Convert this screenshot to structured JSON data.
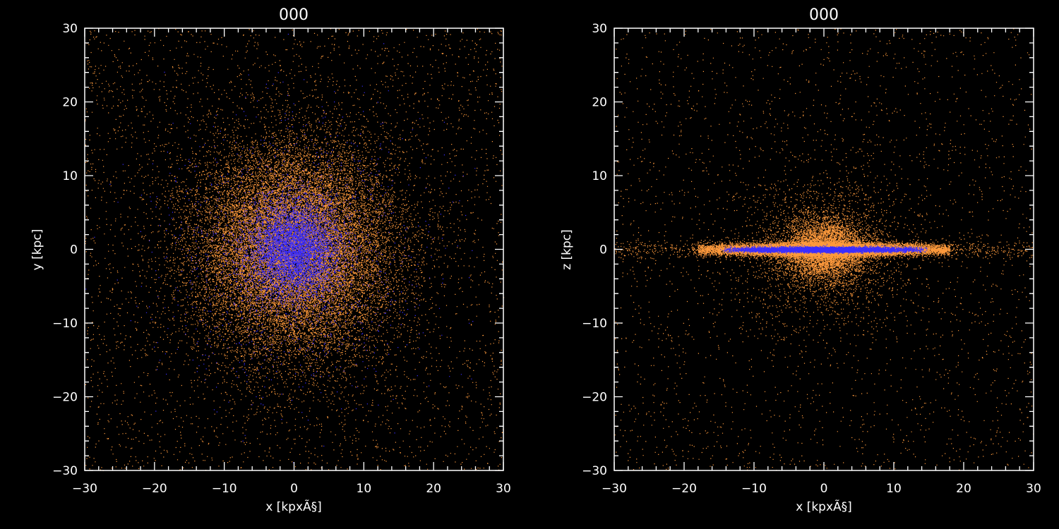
{
  "chart_data": [
    {
      "type": "scatter",
      "title": "000",
      "xlabel": "x [kpxÃ§]",
      "ylabel": "y [kpc]",
      "xlim": [
        -30,
        30
      ],
      "ylim": [
        -30,
        30
      ],
      "xticks": [
        -30,
        -20,
        -10,
        0,
        10,
        20,
        30
      ],
      "yticks": [
        -30,
        -20,
        -10,
        0,
        10,
        20,
        30
      ],
      "xtick_labels": [
        "−30",
        "−20",
        "−10",
        "0",
        "10",
        "20",
        "30"
      ],
      "ytick_labels": [
        "−30",
        "−20",
        "−10",
        "0",
        "10",
        "20",
        "30"
      ],
      "grid": false,
      "series": [
        {
          "color": "#ff9a3c",
          "description": "face-on view, broad round particle distribution concentrated toward center (sigma ~7 kpc)"
        },
        {
          "color": "#3a2cff",
          "description": "face-on view, compact round core at center (sigma ~3 kpc)"
        }
      ]
    },
    {
      "type": "scatter",
      "title": "000",
      "xlabel": "x [kpxÃ§]",
      "ylabel": "z [kpc]",
      "xlim": [
        -30,
        30
      ],
      "ylim": [
        -30,
        30
      ],
      "xticks": [
        -30,
        -20,
        -10,
        0,
        10,
        20,
        30
      ],
      "yticks": [
        -30,
        -20,
        -10,
        0,
        10,
        20,
        30
      ],
      "xtick_labels": [
        "−30",
        "−20",
        "−10",
        "0",
        "10",
        "20",
        "30"
      ],
      "ytick_labels": [
        "−30",
        "−20",
        "−10",
        "0",
        "10",
        "20",
        "30"
      ],
      "grid": false,
      "series": [
        {
          "color": "#ff9a3c",
          "description": "edge-on view, thin disk extending to about ±18 kpc with central bulge (~±4 kpc) and sparse halo"
        },
        {
          "color": "#3a2cff",
          "description": "edge-on view, very thin disk near z=0 extending to about ±15 kpc"
        }
      ]
    }
  ]
}
